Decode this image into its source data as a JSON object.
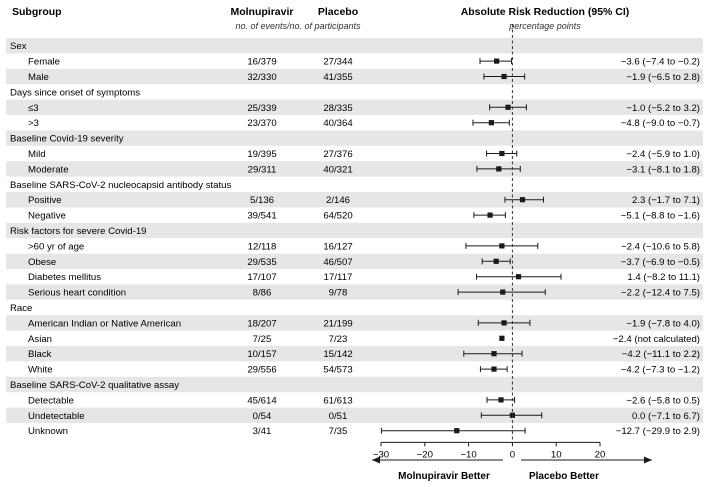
{
  "chart_data": {
    "type": "forest",
    "title": "Absolute Risk Reduction (95% CI)",
    "subtitle": "percentage points",
    "columns": {
      "subgroup": "Subgroup",
      "molnupiravir": "Molnupiravir",
      "placebo": "Placebo",
      "events_note": "no. of events/no. of participants"
    },
    "xlim": [
      -30,
      20
    ],
    "xticks": [
      -30,
      -20,
      -10,
      0,
      10,
      20
    ],
    "tick_labels": [
      "−30",
      "−20",
      "−10",
      "0",
      "10",
      "20"
    ],
    "reference_line": 0,
    "left_direction_label": "Molnupiravir Better",
    "right_direction_label": "Placebo Better",
    "groups": [
      {
        "label": "Sex",
        "rows": [
          {
            "label": "Female",
            "molnupiravir": "16/379",
            "placebo": "27/344",
            "estimate": -3.6,
            "lower": -7.4,
            "upper": -0.2,
            "ci_text": "−3.6 (−7.4 to −0.2)"
          },
          {
            "label": "Male",
            "molnupiravir": "32/330",
            "placebo": "41/355",
            "estimate": -1.9,
            "lower": -6.5,
            "upper": 2.8,
            "ci_text": "−1.9 (−6.5 to 2.8)"
          }
        ]
      },
      {
        "label": "Days since onset of symptoms",
        "rows": [
          {
            "label": "≤3",
            "molnupiravir": "25/339",
            "placebo": "28/335",
            "estimate": -1.0,
            "lower": -5.2,
            "upper": 3.2,
            "ci_text": "−1.0 (−5.2 to 3.2)"
          },
          {
            "label": ">3",
            "molnupiravir": "23/370",
            "placebo": "40/364",
            "estimate": -4.8,
            "lower": -9.0,
            "upper": -0.7,
            "ci_text": "−4.8 (−9.0 to −0.7)"
          }
        ]
      },
      {
        "label": "Baseline Covid-19 severity",
        "rows": [
          {
            "label": "Mild",
            "molnupiravir": "19/395",
            "placebo": "27/376",
            "estimate": -2.4,
            "lower": -5.9,
            "upper": 1.0,
            "ci_text": "−2.4 (−5.9 to 1.0)"
          },
          {
            "label": "Moderate",
            "molnupiravir": "29/311",
            "placebo": "40/321",
            "estimate": -3.1,
            "lower": -8.1,
            "upper": 1.8,
            "ci_text": "−3.1 (−8.1 to 1.8)"
          }
        ]
      },
      {
        "label": "Baseline SARS-CoV-2 nucleocapsid antibody status",
        "rows": [
          {
            "label": "Positive",
            "molnupiravir": "5/136",
            "placebo": "2/146",
            "estimate": 2.3,
            "lower": -1.7,
            "upper": 7.1,
            "ci_text": "2.3 (−1.7 to 7.1)"
          },
          {
            "label": "Negative",
            "molnupiravir": "39/541",
            "placebo": "64/520",
            "estimate": -5.1,
            "lower": -8.8,
            "upper": -1.6,
            "ci_text": "−5.1 (−8.8 to −1.6)"
          }
        ]
      },
      {
        "label": "Risk factors for severe Covid-19",
        "rows": [
          {
            "label": ">60 yr of age",
            "molnupiravir": "12/118",
            "placebo": "16/127",
            "estimate": -2.4,
            "lower": -10.6,
            "upper": 5.8,
            "ci_text": "−2.4 (−10.6 to 5.8)"
          },
          {
            "label": "Obese",
            "molnupiravir": "29/535",
            "placebo": "46/507",
            "estimate": -3.7,
            "lower": -6.9,
            "upper": -0.5,
            "ci_text": "−3.7 (−6.9 to −0.5)"
          },
          {
            "label": "Diabetes mellitus",
            "molnupiravir": "17/107",
            "placebo": "17/117",
            "estimate": 1.4,
            "lower": -8.2,
            "upper": 11.1,
            "ci_text": "1.4 (−8.2 to 11.1)"
          },
          {
            "label": "Serious heart condition",
            "molnupiravir": "8/86",
            "placebo": "9/78",
            "estimate": -2.2,
            "lower": -12.4,
            "upper": 7.5,
            "ci_text": "−2.2 (−12.4 to 7.5)"
          }
        ]
      },
      {
        "label": "Race",
        "rows": [
          {
            "label": "American Indian or Native American",
            "molnupiravir": "18/207",
            "placebo": "21/199",
            "estimate": -1.9,
            "lower": -7.8,
            "upper": 4.0,
            "ci_text": "−1.9 (−7.8 to 4.0)"
          },
          {
            "label": "Asian",
            "molnupiravir": "7/25",
            "placebo": "7/23",
            "estimate": -2.4,
            "lower": null,
            "upper": null,
            "ci_text": "−2.4 (not calculated)"
          },
          {
            "label": "Black",
            "molnupiravir": "10/157",
            "placebo": "15/142",
            "estimate": -4.2,
            "lower": -11.1,
            "upper": 2.2,
            "ci_text": "−4.2 (−11.1 to 2.2)"
          },
          {
            "label": "White",
            "molnupiravir": "29/556",
            "placebo": "54/573",
            "estimate": -4.2,
            "lower": -7.3,
            "upper": -1.2,
            "ci_text": "−4.2 (−7.3 to −1.2)"
          }
        ]
      },
      {
        "label": "Baseline SARS-CoV-2 qualitative assay",
        "rows": [
          {
            "label": "Detectable",
            "molnupiravir": "45/614",
            "placebo": "61/613",
            "estimate": -2.6,
            "lower": -5.8,
            "upper": 0.5,
            "ci_text": "−2.6 (−5.8 to 0.5)"
          },
          {
            "label": "Undetectable",
            "molnupiravir": "0/54",
            "placebo": "0/51",
            "estimate": 0.0,
            "lower": -7.1,
            "upper": 6.7,
            "ci_text": "0.0 (−7.1 to 6.7)"
          },
          {
            "label": "Unknown",
            "molnupiravir": "3/41",
            "placebo": "7/35",
            "estimate": -12.7,
            "lower": -29.9,
            "upper": 2.9,
            "ci_text": "−12.7 (−29.9 to 2.9)"
          }
        ]
      }
    ],
    "colors": {
      "stripe": "#e6e6e6",
      "marker": "#1a1a1a",
      "line": "#1a1a1a"
    }
  }
}
